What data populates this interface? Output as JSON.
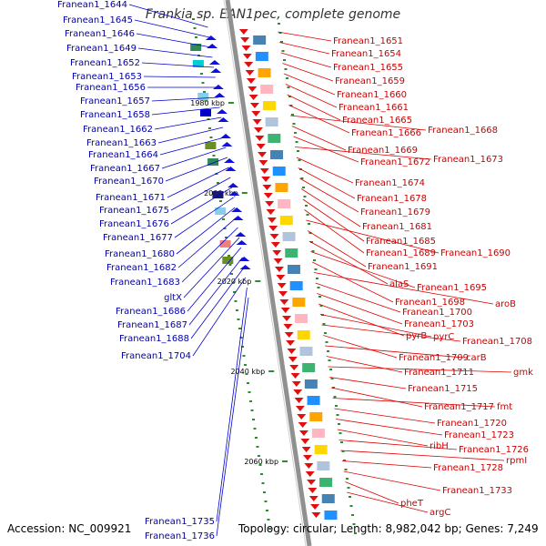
{
  "title": "Frankia sp. EAN1pec, complete genome",
  "footer": {
    "accession": "Accession: NC_009921",
    "summary": "Topology: circular; Length: 8,982,042 bp; Genes: 7,249"
  },
  "axis_ticks": [
    "1980 kbp",
    "2000 kbp",
    "2020 kbp",
    "2040 kbp",
    "2060 kbp"
  ],
  "left_genes": [
    "Franean1_1644",
    "Franean1_1645",
    "Franean1_1646",
    "Franean1_1649",
    "Franean1_1652",
    "Franean1_1653",
    "Franean1_1656",
    "Franean1_1657",
    "Franean1_1658",
    "Franean1_1662",
    "Franean1_1663",
    "Franean1_1664",
    "Franean1_1667",
    "Franean1_1670",
    "Franean1_1671",
    "Franean1_1675",
    "Franean1_1676",
    "Franean1_1677",
    "Franean1_1680",
    "Franean1_1682",
    "Franean1_1683",
    "gltX",
    "Franean1_1686",
    "Franean1_1687",
    "Franean1_1688",
    "Franean1_1704",
    "Franean1_1735",
    "Franean1_1736"
  ],
  "right_genes": [
    "Franean1_1651",
    "Franean1_1654",
    "Franean1_1655",
    "Franean1_1659",
    "Franean1_1660",
    "Franean1_1661",
    "Franean1_1665",
    "Franean1_1666",
    "Franean1_1668",
    "Franean1_1669",
    "Franean1_1672",
    "Franean1_1673",
    "Franean1_1674",
    "Franean1_1678",
    "Franean1_1679",
    "Franean1_1681",
    "Franean1_1685",
    "Franean1_1689",
    "Franean1_1690",
    "Franean1_1691",
    "alaS",
    "Franean1_1695",
    "Franean1_1698",
    "aroB",
    "Franean1_1700",
    "Franean1_1703",
    "pyrB",
    "pyrC",
    "Franean1_1708",
    "Franean1_1709",
    "carB",
    "Franean1_1711",
    "gmk",
    "Franean1_1715",
    "Franean1_1717",
    "fmt",
    "Franean1_1720",
    "Franean1_1723",
    "ribH",
    "Franean1_1726",
    "rpmI",
    "Franean1_1728",
    "Franean1_1733",
    "pheT",
    "argC"
  ],
  "colors": {
    "left_label": "#0000aa",
    "right_label": "#cc0000",
    "backbone": "#909090",
    "tick": "#2e8b2e"
  }
}
